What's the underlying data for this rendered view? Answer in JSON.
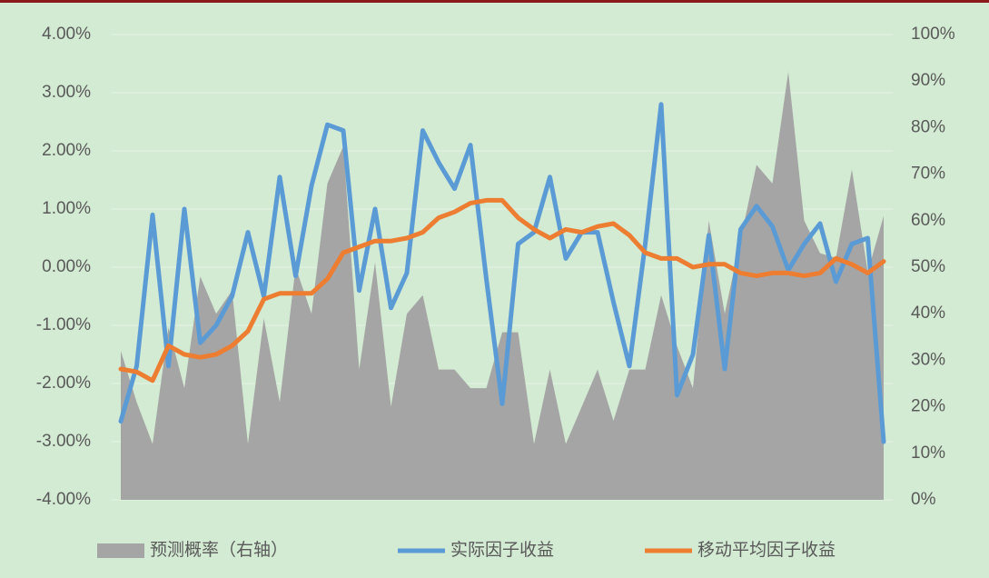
{
  "chart_data": {
    "type": "combo",
    "ylim": [
      -4,
      4
    ],
    "yticks": [
      {
        "value": -4,
        "label": "-4.00%"
      },
      {
        "value": -3,
        "label": "-3.00%"
      },
      {
        "value": -2,
        "label": "-2.00%"
      },
      {
        "value": -1,
        "label": "-1.00%"
      },
      {
        "value": 0,
        "label": "0.00%"
      },
      {
        "value": 1,
        "label": "1.00%"
      },
      {
        "value": 2,
        "label": "2.00%"
      },
      {
        "value": 3,
        "label": "3.00%"
      },
      {
        "value": 4,
        "label": "4.00%"
      }
    ],
    "y2lim": [
      0,
      100
    ],
    "y2ticks": [
      {
        "value": 0,
        "label": "0%"
      },
      {
        "value": 10,
        "label": "10%"
      },
      {
        "value": 20,
        "label": "20%"
      },
      {
        "value": 30,
        "label": "30%"
      },
      {
        "value": 40,
        "label": "40%"
      },
      {
        "value": 50,
        "label": "50%"
      },
      {
        "value": 60,
        "label": "60%"
      },
      {
        "value": 70,
        "label": "70%"
      },
      {
        "value": 80,
        "label": "80%"
      },
      {
        "value": 90,
        "label": "90%"
      },
      {
        "value": 100,
        "label": "100%"
      }
    ],
    "grid": true,
    "legend": "bottom",
    "series": [
      {
        "name": "预测概率（右轴）",
        "type": "area",
        "axis": "y2",
        "color": "#a5a5a5",
        "values": [
          32,
          21,
          12,
          37,
          24,
          48,
          40,
          45,
          12,
          39,
          21,
          50,
          40,
          68,
          76,
          28,
          51,
          20,
          40,
          44,
          28,
          28,
          24,
          24,
          36,
          36,
          12,
          28,
          12,
          20,
          28,
          17,
          28,
          28,
          44,
          33,
          24,
          60,
          40,
          56,
          72,
          68,
          92,
          60,
          53,
          52,
          71,
          49,
          61
        ]
      },
      {
        "name": "实际因子收益",
        "type": "line",
        "color": "#5b9bd5",
        "values": [
          -2.65,
          -1.7,
          0.9,
          -1.7,
          1.0,
          -1.3,
          -1.0,
          -0.5,
          0.6,
          -0.5,
          1.55,
          -0.15,
          1.4,
          2.45,
          2.35,
          -0.4,
          1.0,
          -0.7,
          -0.1,
          2.35,
          1.8,
          1.35,
          2.1,
          -0.2,
          -2.35,
          0.4,
          0.6,
          1.55,
          0.15,
          0.6,
          0.6,
          -0.6,
          -1.7,
          0.4,
          2.8,
          -2.2,
          -1.5,
          0.55,
          -1.75,
          0.65,
          1.05,
          0.7,
          -0.05,
          0.4,
          0.75,
          -0.25,
          0.4,
          0.5,
          -3.0
        ]
      },
      {
        "name": "移动平均因子收益",
        "type": "line",
        "color": "#ed7d31",
        "values": [
          -1.75,
          -1.8,
          -1.95,
          -1.35,
          -1.5,
          -1.55,
          -1.5,
          -1.35,
          -1.1,
          -0.55,
          -0.45,
          -0.45,
          -0.45,
          -0.2,
          0.25,
          0.35,
          0.45,
          0.45,
          0.5,
          0.6,
          0.85,
          0.95,
          1.1,
          1.15,
          1.15,
          0.85,
          0.65,
          0.5,
          0.65,
          0.6,
          0.7,
          0.75,
          0.55,
          0.25,
          0.15,
          0.15,
          0.0,
          0.05,
          0.05,
          -0.1,
          -0.15,
          -0.1,
          -0.1,
          -0.15,
          -0.1,
          0.15,
          0.05,
          -0.1,
          0.1
        ]
      }
    ]
  }
}
